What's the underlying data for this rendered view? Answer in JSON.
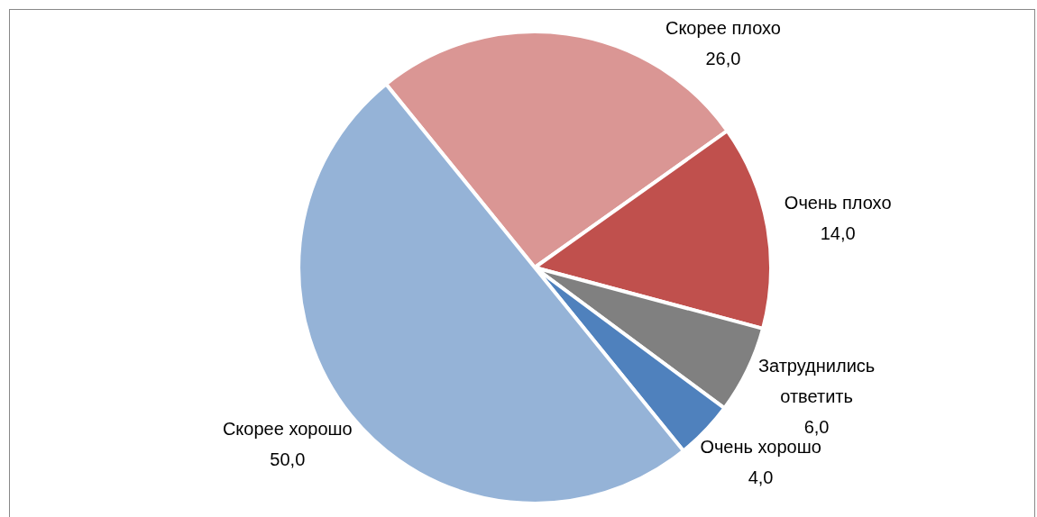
{
  "chart_data": {
    "type": "pie",
    "categories": [
      "Скорее плохо",
      "Очень плохо",
      "Затруднились ответить",
      "Очень хорошо",
      "Скорее хорошо"
    ],
    "values": [
      26,
      14,
      6,
      4,
      50
    ],
    "colors": [
      "#da9694",
      "#c0504d",
      "#808080",
      "#4f81bd",
      "#95b3d7"
    ],
    "value_labels": [
      "26,0",
      "14,0",
      "6,0",
      "4,0",
      "50,0"
    ],
    "legend": false
  }
}
